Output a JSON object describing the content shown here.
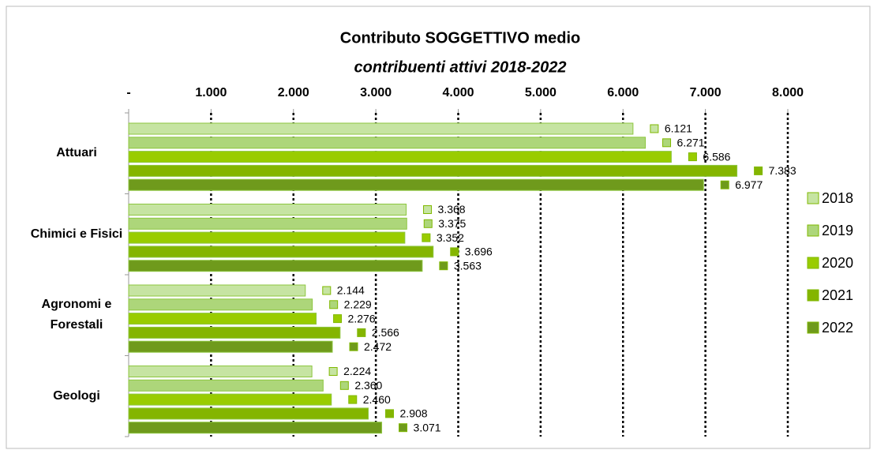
{
  "chart_data": {
    "type": "bar",
    "orientation": "horizontal",
    "title": "Contributo SOGGETTIVO medio",
    "subtitle": "contribuenti attivi 2018-2022",
    "categories": [
      "Attuari",
      "Chimici e Fisici",
      "Agronomi e Forestali",
      "Geologi"
    ],
    "series": [
      {
        "name": "2018",
        "color": "#c6e4a2",
        "values": [
          6121,
          3368,
          2144,
          2224
        ],
        "value_labels": [
          "6.121",
          "3.368",
          "2.144",
          "2.224"
        ]
      },
      {
        "name": "2019",
        "color": "#add67a",
        "values": [
          6271,
          3375,
          2229,
          2360
        ],
        "value_labels": [
          "6.271",
          "3.375",
          "2.229",
          "2.360"
        ]
      },
      {
        "name": "2020",
        "color": "#99cc00",
        "values": [
          6586,
          3352,
          2276,
          2460
        ],
        "value_labels": [
          "6.586",
          "3.352",
          "2.276",
          "2.460"
        ]
      },
      {
        "name": "2021",
        "color": "#84b500",
        "values": [
          7383,
          3696,
          2566,
          2908
        ],
        "value_labels": [
          "7.383",
          "3.696",
          "2.566",
          "2.908"
        ]
      },
      {
        "name": "2022",
        "color": "#6f9a1c",
        "values": [
          6977,
          3563,
          2472,
          3071
        ],
        "value_labels": [
          "6.977",
          "3.563",
          "2.472",
          "3.071"
        ]
      }
    ],
    "xlim": [
      0,
      8000
    ],
    "xticks": [
      {
        "value": 0,
        "label": "-"
      },
      {
        "value": 1000,
        "label": "1.000"
      },
      {
        "value": 2000,
        "label": "2.000"
      },
      {
        "value": 3000,
        "label": "3.000"
      },
      {
        "value": 4000,
        "label": "4.000"
      },
      {
        "value": 5000,
        "label": "5.000"
      },
      {
        "value": 6000,
        "label": "6.000"
      },
      {
        "value": 7000,
        "label": "7.000"
      },
      {
        "value": 8000,
        "label": "8.000"
      }
    ],
    "grid": true,
    "legend": "right"
  }
}
